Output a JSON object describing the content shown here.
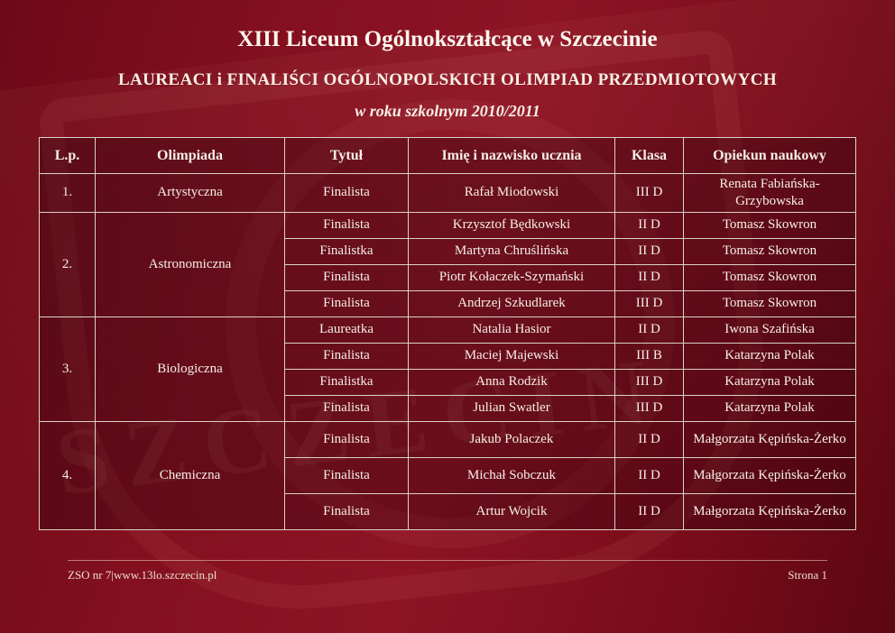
{
  "header": {
    "title": "XIII Liceum Ogólnokształcące w Szczecinie",
    "subtitle": "LAUREACI i FINALIŚCI OGÓLNOPOLSKICH OLIMPIAD PRZEDMIOTOWYCH",
    "school_year": "w roku szkolnym 2010/2011"
  },
  "watermark": {
    "text": "SZCZECIN"
  },
  "colors": {
    "background": "#7e0d1f",
    "cell_background": "#6a0b19",
    "border": "#d9d2c4",
    "text": "#f5efe4"
  },
  "table": {
    "headers": [
      "L.p.",
      "Olimpiada",
      "Tytuł",
      "Imię i nazwisko ucznia",
      "Klasa",
      "Opiekun naukowy"
    ],
    "groups": [
      {
        "lp": "1.",
        "olimpiada": "Artystyczna",
        "rows": [
          {
            "tytul": "Finalista",
            "uczen": "Rafał Miodowski",
            "klasa": "III D",
            "opiekun": "Renata Fabiańska-Grzybowska"
          }
        ]
      },
      {
        "lp": "2.",
        "olimpiada": "Astronomiczna",
        "rows": [
          {
            "tytul": "Finalista",
            "uczen": "Krzysztof Będkowski",
            "klasa": "II D",
            "opiekun": "Tomasz Skowron"
          },
          {
            "tytul": "Finalistka",
            "uczen": "Martyna Chruślińska",
            "klasa": "II D",
            "opiekun": "Tomasz Skowron"
          },
          {
            "tytul": "Finalista",
            "uczen": "Piotr Kołaczek-Szymański",
            "klasa": "II D",
            "opiekun": "Tomasz Skowron"
          },
          {
            "tytul": "Finalista",
            "uczen": "Andrzej Szkudlarek",
            "klasa": "III D",
            "opiekun": "Tomasz Skowron"
          }
        ]
      },
      {
        "lp": "3.",
        "olimpiada": "Biologiczna",
        "rows": [
          {
            "tytul": "Laureatka",
            "uczen": "Natalia Hasior",
            "klasa": "II D",
            "opiekun": "Iwona Szafińska"
          },
          {
            "tytul": "Finalista",
            "uczen": "Maciej Majewski",
            "klasa": "III B",
            "opiekun": "Katarzyna Polak"
          },
          {
            "tytul": "Finalistka",
            "uczen": "Anna Rodzik",
            "klasa": "III D",
            "opiekun": "Katarzyna Polak"
          },
          {
            "tytul": "Finalista",
            "uczen": "Julian Swatler",
            "klasa": "III D",
            "opiekun": "Katarzyna Polak"
          }
        ]
      },
      {
        "lp": "4.",
        "olimpiada": "Chemiczna",
        "rows": [
          {
            "tytul": "Finalista",
            "uczen": "Jakub Polaczek",
            "klasa": "II D",
            "opiekun": "Małgorzata Kępińska-Żerko"
          },
          {
            "tytul": "Finalista",
            "uczen": "Michał Sobczuk",
            "klasa": "II D",
            "opiekun": "Małgorzata Kępińska-Żerko"
          },
          {
            "tytul": "Finalista",
            "uczen": "Artur Wojcik",
            "klasa": "II D",
            "opiekun": "Małgorzata Kępińska-Żerko"
          }
        ]
      }
    ]
  },
  "footer": {
    "left": "ZSO nr 7|www.13lo.szczecin.pl",
    "right": "Strona 1"
  }
}
